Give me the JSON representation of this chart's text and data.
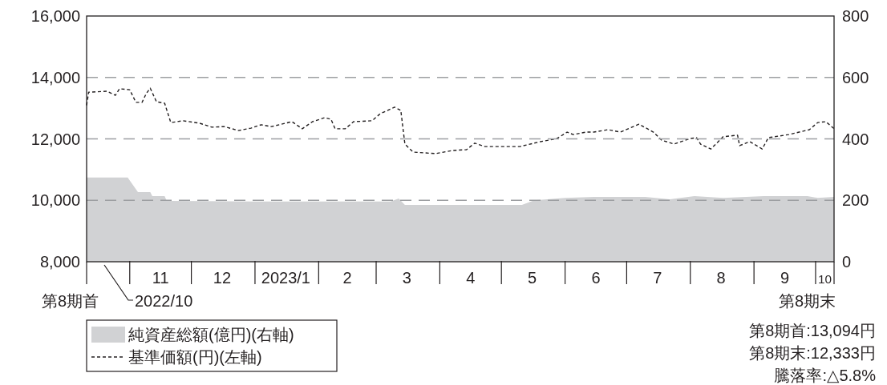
{
  "chart_data": {
    "type": "line",
    "xlim": [
      "2022-10-11",
      "2023-10-10"
    ],
    "xticks": [
      {
        "value": "2022-11-01",
        "label": null
      },
      {
        "value": "2022-11-16",
        "label": "11"
      },
      {
        "value": "2022-12-01",
        "label": null
      },
      {
        "value": "2022-12-16",
        "label": "12"
      },
      {
        "value": "2023-01-01",
        "label": null
      },
      {
        "value": "2023-01-16",
        "label": "2023/1"
      },
      {
        "value": "2023-02-01",
        "label": null
      },
      {
        "value": "2023-02-15",
        "label": "2"
      },
      {
        "value": "2023-03-01",
        "label": null
      },
      {
        "value": "2023-03-16",
        "label": "3"
      },
      {
        "value": "2023-04-01",
        "label": null
      },
      {
        "value": "2023-04-16",
        "label": "4"
      },
      {
        "value": "2023-05-01",
        "label": null
      },
      {
        "value": "2023-05-16",
        "label": "5"
      },
      {
        "value": "2023-06-01",
        "label": null
      },
      {
        "value": "2023-06-16",
        "label": "6"
      },
      {
        "value": "2023-07-01",
        "label": null
      },
      {
        "value": "2023-07-16",
        "label": "7"
      },
      {
        "value": "2023-08-01",
        "label": null
      },
      {
        "value": "2023-08-16",
        "label": "8"
      },
      {
        "value": "2023-09-01",
        "label": null
      },
      {
        "value": "2023-09-16",
        "label": "9"
      },
      {
        "value": "2023-10-01",
        "label": null
      },
      {
        "value": "2023-10-05T12:00",
        "label": "10"
      }
    ],
    "ylim": [
      8000,
      16000
    ],
    "yticks": [
      {
        "value": 8000,
        "label": "8,000"
      },
      {
        "value": 10000,
        "label": "10,000"
      },
      {
        "value": 12000,
        "label": "12,000"
      },
      {
        "value": 14000,
        "label": "14,000"
      },
      {
        "value": 16000,
        "label": "16,000"
      }
    ],
    "y2lim": [
      0,
      800
    ],
    "y2ticks": [
      0,
      200,
      400,
      600,
      800
    ],
    "grid": "y",
    "legend": "bottom left",
    "series": [
      {
        "name": "純資産総額(億円)(右軸)",
        "type": "area",
        "axis": "y2",
        "color": "#d1d2d4",
        "x": [
          "2022-10-11",
          "2022-10-31",
          "2022-11-05",
          "2022-11-11",
          "2022-11-12",
          "2022-11-18",
          "2022-11-19",
          "2022-12-30",
          "2023-03-08",
          "2023-03-12",
          "2023-03-15",
          "2023-05-11",
          "2023-05-17",
          "2023-06-01",
          "2023-06-15",
          "2023-07-10",
          "2023-07-22",
          "2023-08-03",
          "2023-08-17",
          "2023-09-06",
          "2023-09-27",
          "2023-10-02",
          "2023-10-10"
        ],
        "values": [
          274,
          274,
          227,
          227,
          214,
          214,
          198,
          196,
          196,
          206,
          185,
          185,
          200,
          208,
          211,
          211,
          203,
          214,
          208,
          214,
          214,
          208,
          211
        ]
      },
      {
        "name": "基準価額(円)(左軸)",
        "line_style": "dashed",
        "color": "#231f20",
        "x": [
          "2022-10-11",
          "2022-10-12",
          "2022-10-21",
          "2022-10-25",
          "2022-10-27",
          "2022-11-01",
          "2022-11-04",
          "2022-11-07",
          "2022-11-09",
          "2022-11-11",
          "2022-11-14",
          "2022-11-18",
          "2022-11-21",
          "2022-11-27",
          "2022-12-05",
          "2022-12-11",
          "2022-12-17",
          "2022-12-24",
          "2022-12-30",
          "2023-01-04",
          "2023-01-09",
          "2023-01-19",
          "2023-01-24",
          "2023-01-29",
          "2023-02-04",
          "2023-02-07",
          "2023-02-09",
          "2023-02-14",
          "2023-02-18",
          "2023-02-27",
          "2023-03-03",
          "2023-03-10",
          "2023-03-13",
          "2023-03-15",
          "2023-03-19",
          "2023-03-30",
          "2023-04-07",
          "2023-04-14",
          "2023-04-18",
          "2023-04-23",
          "2023-05-10",
          "2023-05-20",
          "2023-05-28",
          "2023-06-02",
          "2023-06-05",
          "2023-06-11",
          "2023-06-15",
          "2023-06-22",
          "2023-06-28",
          "2023-07-07",
          "2023-07-14",
          "2023-07-18",
          "2023-07-24",
          "2023-08-01",
          "2023-08-04",
          "2023-08-06",
          "2023-08-11",
          "2023-08-17",
          "2023-08-24",
          "2023-08-25",
          "2023-08-30",
          "2023-09-05",
          "2023-09-08",
          "2023-09-18",
          "2023-09-28",
          "2023-10-02",
          "2023-10-06",
          "2023-10-10"
        ],
        "values": [
          13094,
          13520,
          13550,
          13420,
          13630,
          13600,
          13190,
          13190,
          13470,
          13650,
          13210,
          13160,
          12530,
          12590,
          12510,
          12380,
          12400,
          12270,
          12350,
          12460,
          12400,
          12560,
          12330,
          12560,
          12690,
          12640,
          12330,
          12330,
          12560,
          12590,
          12820,
          13030,
          12930,
          11830,
          11570,
          11520,
          11620,
          11650,
          11860,
          11750,
          11750,
          11910,
          12010,
          12220,
          12140,
          12220,
          12220,
          12300,
          12220,
          12480,
          12220,
          11960,
          11830,
          12010,
          12040,
          11830,
          11670,
          12070,
          12120,
          11780,
          11910,
          11670,
          12040,
          12140,
          12300,
          12530,
          12560,
          12333
        ]
      }
    ],
    "annotations": [
      "第8期首",
      "2022/10",
      "第8期末",
      "第8期首:13,094円",
      "第8期末:12,333円",
      "騰落率:△5.8%"
    ]
  }
}
